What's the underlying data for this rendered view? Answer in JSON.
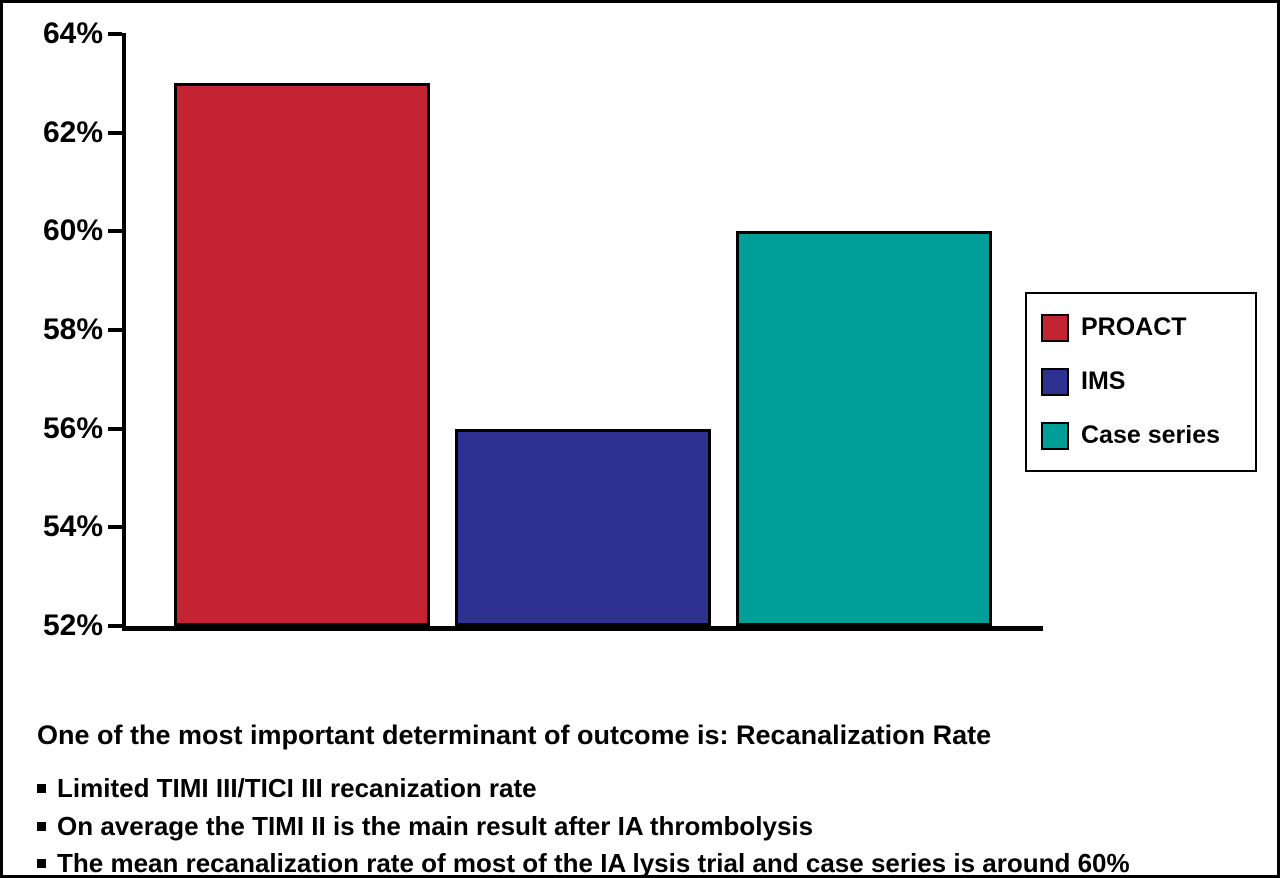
{
  "chart_data": {
    "type": "bar",
    "categories": [
      "PROACT",
      "IMS",
      "Case series"
    ],
    "values": [
      63,
      56,
      60
    ],
    "unit": "%",
    "colors": [
      "#c42432",
      "#2f3190",
      "#009e99"
    ],
    "ylim": [
      52,
      64
    ],
    "ytick_labels": [
      "52%",
      "54%",
      "56%",
      "58%",
      "60%",
      "62%",
      "64%"
    ],
    "grid": "off",
    "xlabel": "",
    "ylabel": "",
    "title": "",
    "legend": {
      "position": "right",
      "entries": [
        "PROACT",
        "IMS",
        "Case series"
      ]
    }
  },
  "caption": {
    "heading": "One of the most important determinant of outcome is: Recanalization Rate",
    "bullets": [
      "Limited TIMI III/TICI III recanization rate",
      "On average the TIMI II is the main result after IA thrombolysis",
      "The mean recanalization rate of most of the IA lysis trial and case series is around 60%"
    ]
  }
}
